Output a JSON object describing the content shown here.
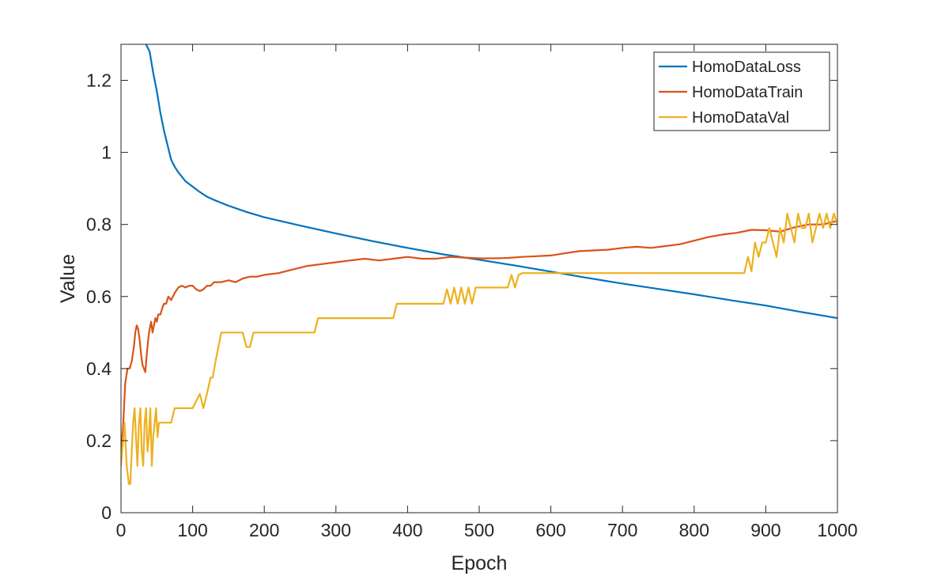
{
  "chart_data": {
    "type": "line",
    "title": "",
    "xlabel": "Epoch",
    "ylabel": "Value",
    "xlim": [
      0,
      1000
    ],
    "ylim": [
      0,
      1.3
    ],
    "xticks": [
      0,
      100,
      200,
      300,
      400,
      500,
      600,
      700,
      800,
      900,
      1000
    ],
    "yticks": [
      0,
      0.2,
      0.4,
      0.6,
      0.8,
      1,
      1.2
    ],
    "xtick_labels": [
      "0",
      "100",
      "200",
      "300",
      "400",
      "500",
      "600",
      "700",
      "800",
      "900",
      "1000"
    ],
    "ytick_labels": [
      "0",
      "0.2",
      "0.4",
      "0.6",
      "0.8",
      "1",
      "1.2"
    ],
    "grid": false,
    "legend_position": "top-right",
    "series": [
      {
        "name": "HomoDataLoss",
        "color": "#0072BD",
        "x": [
          35,
          40,
          45,
          50,
          55,
          60,
          65,
          70,
          75,
          80,
          90,
          100,
          110,
          120,
          130,
          140,
          150,
          175,
          200,
          250,
          300,
          350,
          400,
          450,
          500,
          550,
          600,
          650,
          700,
          750,
          800,
          850,
          900,
          950,
          1000
        ],
        "y": [
          1.3,
          1.28,
          1.22,
          1.17,
          1.11,
          1.06,
          1.02,
          0.98,
          0.96,
          0.945,
          0.92,
          0.905,
          0.89,
          0.877,
          0.868,
          0.86,
          0.852,
          0.835,
          0.82,
          0.797,
          0.775,
          0.754,
          0.735,
          0.717,
          0.702,
          0.686,
          0.669,
          0.652,
          0.636,
          0.621,
          0.606,
          0.59,
          0.575,
          0.557,
          0.54
        ]
      },
      {
        "name": "HomoDataTrain",
        "color": "#D95319",
        "x": [
          0,
          3,
          6,
          9,
          12,
          15,
          18,
          20,
          22,
          24,
          26,
          28,
          30,
          32,
          34,
          36,
          38,
          40,
          42,
          44,
          46,
          48,
          50,
          52,
          55,
          58,
          60,
          63,
          66,
          70,
          75,
          80,
          85,
          90,
          95,
          100,
          105,
          110,
          115,
          120,
          125,
          130,
          140,
          150,
          160,
          170,
          180,
          190,
          200,
          220,
          240,
          260,
          280,
          300,
          320,
          340,
          360,
          380,
          400,
          420,
          440,
          460,
          480,
          500,
          520,
          540,
          560,
          580,
          600,
          620,
          640,
          660,
          680,
          700,
          720,
          740,
          760,
          780,
          800,
          820,
          840,
          860,
          880,
          900,
          920,
          940,
          960,
          980,
          1000
        ],
        "y": [
          0.17,
          0.24,
          0.36,
          0.4,
          0.4,
          0.42,
          0.46,
          0.5,
          0.52,
          0.51,
          0.48,
          0.44,
          0.41,
          0.4,
          0.39,
          0.44,
          0.48,
          0.51,
          0.53,
          0.5,
          0.52,
          0.54,
          0.53,
          0.55,
          0.55,
          0.57,
          0.58,
          0.58,
          0.6,
          0.59,
          0.61,
          0.625,
          0.63,
          0.625,
          0.63,
          0.63,
          0.62,
          0.615,
          0.62,
          0.63,
          0.63,
          0.64,
          0.64,
          0.645,
          0.64,
          0.65,
          0.655,
          0.655,
          0.66,
          0.665,
          0.675,
          0.685,
          0.69,
          0.695,
          0.7,
          0.705,
          0.7,
          0.705,
          0.71,
          0.705,
          0.705,
          0.71,
          0.708,
          0.706,
          0.706,
          0.707,
          0.71,
          0.712,
          0.714,
          0.72,
          0.726,
          0.728,
          0.73,
          0.735,
          0.738,
          0.735,
          0.74,
          0.745,
          0.755,
          0.765,
          0.772,
          0.777,
          0.785,
          0.784,
          0.78,
          0.792,
          0.8,
          0.8,
          0.81
        ]
      },
      {
        "name": "HomoDataVal",
        "color": "#EDB120",
        "x": [
          0,
          5,
          8,
          11,
          13,
          15,
          17,
          19,
          21,
          23,
          25,
          27,
          29,
          31,
          33,
          35,
          37,
          39,
          41,
          43,
          45,
          47,
          49,
          51,
          53,
          56,
          60,
          66,
          70,
          75,
          80,
          90,
          100,
          110,
          115,
          120,
          125,
          128,
          132,
          136,
          140,
          145,
          150,
          170,
          175,
          180,
          185,
          270,
          275,
          380,
          385,
          450,
          455,
          460,
          465,
          470,
          475,
          480,
          485,
          490,
          495,
          500,
          540,
          545,
          550,
          555,
          560,
          870,
          875,
          880,
          885,
          890,
          895,
          900,
          905,
          910,
          915,
          920,
          925,
          930,
          935,
          940,
          945,
          950,
          955,
          960,
          965,
          970,
          975,
          980,
          985,
          990,
          995,
          1000
        ],
        "y": [
          0.13,
          0.25,
          0.13,
          0.08,
          0.08,
          0.17,
          0.25,
          0.29,
          0.21,
          0.13,
          0.25,
          0.29,
          0.17,
          0.13,
          0.25,
          0.29,
          0.17,
          0.21,
          0.29,
          0.13,
          0.21,
          0.25,
          0.29,
          0.21,
          0.25,
          0.25,
          0.25,
          0.25,
          0.25,
          0.29,
          0.29,
          0.29,
          0.29,
          0.33,
          0.29,
          0.33,
          0.375,
          0.375,
          0.42,
          0.46,
          0.5,
          0.5,
          0.5,
          0.5,
          0.46,
          0.46,
          0.5,
          0.5,
          0.54,
          0.54,
          0.58,
          0.58,
          0.62,
          0.58,
          0.625,
          0.58,
          0.625,
          0.58,
          0.625,
          0.58,
          0.625,
          0.625,
          0.625,
          0.66,
          0.625,
          0.66,
          0.665,
          0.665,
          0.71,
          0.67,
          0.75,
          0.71,
          0.75,
          0.75,
          0.79,
          0.75,
          0.71,
          0.79,
          0.75,
          0.83,
          0.79,
          0.75,
          0.83,
          0.79,
          0.79,
          0.83,
          0.75,
          0.79,
          0.83,
          0.79,
          0.83,
          0.79,
          0.83,
          0.8
        ]
      }
    ]
  }
}
